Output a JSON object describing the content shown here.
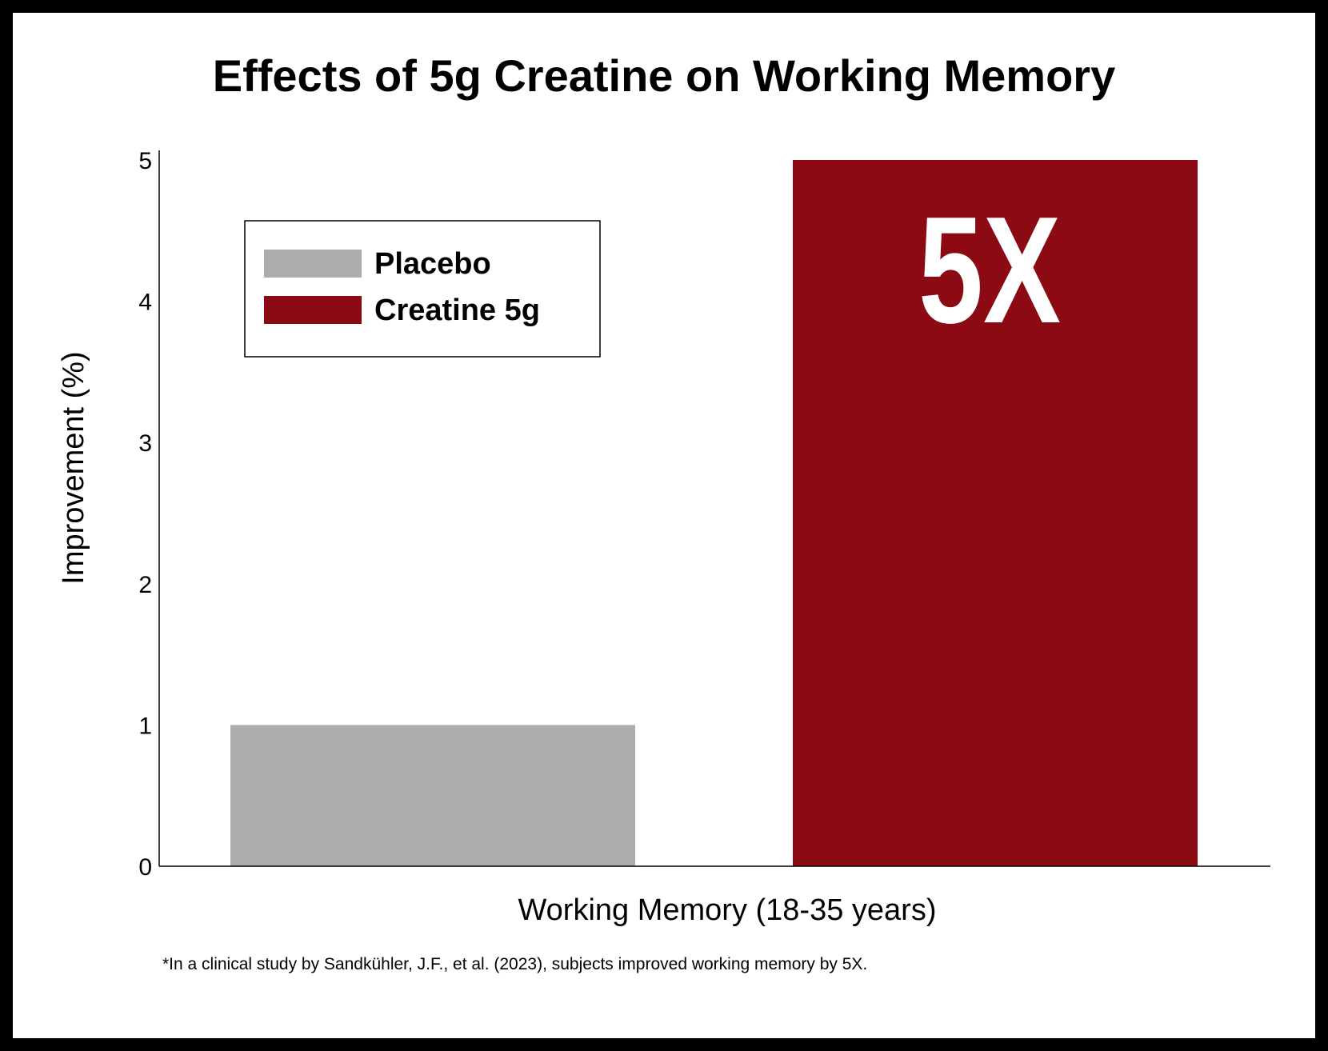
{
  "chart_data": {
    "type": "bar",
    "title": "Effects of 5g Creatine on Working Memory",
    "xlabel": "Working Memory (18-35 years)",
    "ylabel": "Improvement (%)",
    "ylim": [
      0,
      5
    ],
    "yticks": [
      0,
      1,
      2,
      3,
      4,
      5
    ],
    "grid": false,
    "legend_position": "top-left",
    "series": [
      {
        "name": "Placebo",
        "value": 1,
        "color": "#adadad"
      },
      {
        "name": "Creatine 5g",
        "value": 5,
        "color": "#8b0a14"
      }
    ],
    "annotation": "5X",
    "footnote": "*In a clinical study by Sandkühler, J.F., et al. (2023), subjects improved working memory by 5X."
  }
}
